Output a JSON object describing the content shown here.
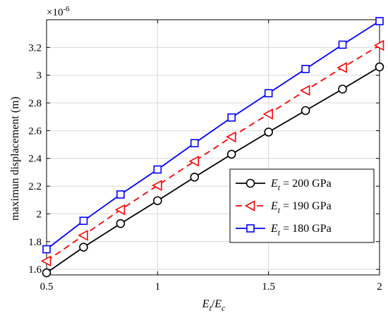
{
  "chart_data": {
    "type": "line",
    "xlabel": {
      "main": "E",
      "sub1": "t",
      "slash": "/",
      "main2": "E",
      "sub2": "c"
    },
    "ylabel": "maximun displacement (m)",
    "exponent_label": "×10",
    "exponent_power": "-6",
    "xlim": [
      0.5,
      2.0
    ],
    "ylim": [
      1.56,
      3.4
    ],
    "xticks": [
      0.5,
      1,
      1.5,
      2
    ],
    "xtick_labels": [
      "0.5",
      "1",
      "1.5",
      "2"
    ],
    "yticks": [
      1.6,
      1.8,
      2.0,
      2.2,
      2.4,
      2.6,
      2.8,
      3.0,
      3.2
    ],
    "ytick_labels": [
      "1.6",
      "1.8",
      "2",
      "2.2",
      "2.4",
      "2.6",
      "2.8",
      "3",
      "3.2"
    ],
    "grid": true,
    "legend_placement": "right",
    "x": [
      0.5,
      0.6667,
      0.8333,
      1.0,
      1.1667,
      1.3333,
      1.5,
      1.6667,
      1.8333,
      2.0
    ],
    "series": [
      {
        "name": "200 GPa",
        "legend_var": "E",
        "legend_sub": "t",
        "legend_eq": " = 200 GPa",
        "color": "#000000",
        "marker": "circle",
        "dash": "solid",
        "values": [
          1.575,
          1.76,
          1.93,
          2.095,
          2.265,
          2.43,
          2.59,
          2.745,
          2.9,
          3.06
        ]
      },
      {
        "name": "190 GPa",
        "legend_var": "E",
        "legend_sub": "t",
        "legend_eq": " = 190 GPa",
        "color": "#ff0000",
        "marker": "triangle-left",
        "dash": "dashed",
        "values": [
          1.66,
          1.845,
          2.03,
          2.205,
          2.38,
          2.555,
          2.72,
          2.89,
          3.055,
          3.215
        ]
      },
      {
        "name": "180 GPa",
        "legend_var": "E",
        "legend_sub": "t",
        "legend_eq": " = 180 GPa",
        "color": "#0000ff",
        "marker": "square",
        "dash": "solid",
        "values": [
          1.745,
          1.95,
          2.14,
          2.32,
          2.51,
          2.695,
          2.87,
          3.045,
          3.22,
          3.39
        ]
      }
    ]
  }
}
